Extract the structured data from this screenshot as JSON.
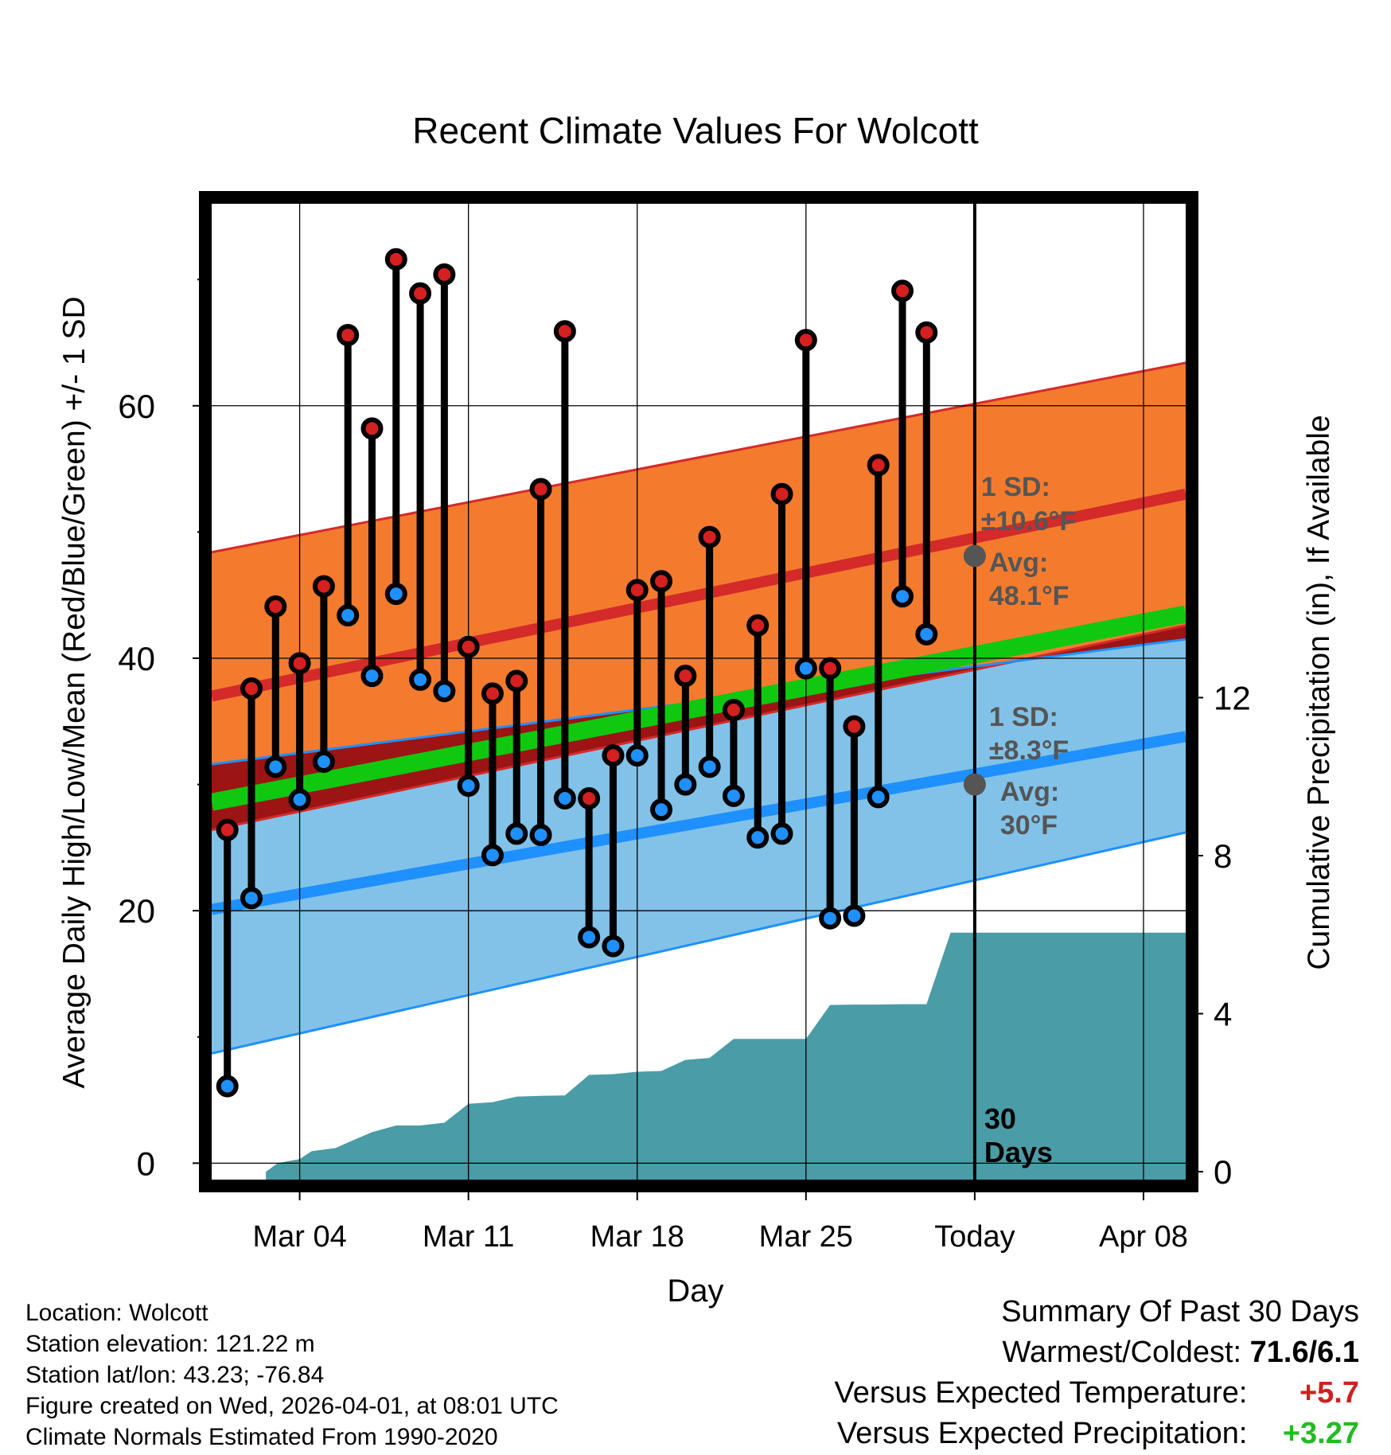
{
  "chart_data": {
    "type": "line",
    "title": "Recent Climate Values For Wolcott",
    "xlabel": "Day",
    "ylabel": "Average Daily High/Low/Mean (Red/Blue/Green) +/- 1 SD",
    "ylabel_right": "Cumulative Precipitation (in), If Available",
    "xlim": [
      0.35,
      40.75
    ],
    "ylim": [
      -1.3,
      76
    ],
    "ylim_right": [
      -0.2,
      24.5
    ],
    "x_ticks": [
      {
        "day": 4,
        "label": "Mar 04"
      },
      {
        "day": 11,
        "label": "Mar 11"
      },
      {
        "day": 18,
        "label": "Mar 18"
      },
      {
        "day": 25,
        "label": "Mar 25"
      },
      {
        "day": 32,
        "label": "Today"
      },
      {
        "day": 39,
        "label": "Apr 08"
      }
    ],
    "y_ticks": [
      0,
      20,
      40,
      60
    ],
    "y_minor_ticks": [
      10,
      30,
      50,
      70
    ],
    "y_right_ticks": [
      0,
      4,
      8,
      12
    ],
    "today_day": 32,
    "window_label": [
      "30",
      "Days"
    ],
    "normals": {
      "x_range": [
        0.35,
        40.75
      ],
      "high_mean": [
        37,
        53
      ],
      "high_upper": [
        48.4,
        63.4
      ],
      "high_lower": [
        26.4,
        42.6
      ],
      "low_mean": [
        20.1,
        33.8
      ],
      "low_upper": [
        31.6,
        41.5
      ],
      "low_lower": [
        8.7,
        26.2
      ],
      "mean": [
        28.6,
        43.5
      ]
    },
    "series": [
      {
        "name": "Daily High",
        "days": [
          1,
          2,
          3,
          4,
          5,
          6,
          7,
          8,
          9,
          10,
          11,
          12,
          13,
          14,
          15,
          16,
          17,
          18,
          19,
          20,
          21,
          22,
          23,
          24,
          25,
          26,
          27,
          28,
          29,
          30,
          31
        ],
        "values": [
          26.4,
          37.6,
          44.1,
          39.6,
          45.7,
          65.6,
          58.2,
          71.6,
          68.9,
          70.4,
          40.9,
          37.2,
          38.2,
          53.4,
          65.9,
          28.9,
          32.3,
          45.4,
          46.1,
          38.6,
          49.6,
          35.9,
          42.6,
          53.0,
          65.2,
          39.2,
          34.6,
          55.3,
          69.1,
          65.8,
          null
        ]
      },
      {
        "name": "Daily Low",
        "days": [
          1,
          2,
          3,
          4,
          5,
          6,
          7,
          8,
          9,
          10,
          11,
          12,
          13,
          14,
          15,
          16,
          17,
          18,
          19,
          20,
          21,
          22,
          23,
          24,
          25,
          26,
          27,
          28,
          29,
          30,
          31
        ],
        "values": [
          6.1,
          21.0,
          31.4,
          28.8,
          31.8,
          43.4,
          38.6,
          45.1,
          38.3,
          37.4,
          29.9,
          24.4,
          26.1,
          26.0,
          28.9,
          17.9,
          17.2,
          32.3,
          28.0,
          30.0,
          31.4,
          29.1,
          25.8,
          26.1,
          39.2,
          19.4,
          19.6,
          29.0,
          44.9,
          41.9,
          null
        ]
      }
    ],
    "precip_cumulative": {
      "name": "Cumulative Precipitation",
      "days": [
        2.6,
        3.1,
        4,
        4.5,
        5.5,
        6,
        7,
        8,
        9,
        10,
        11,
        12,
        13,
        14,
        15,
        16,
        17,
        18,
        19,
        20,
        21,
        22,
        23,
        24,
        25,
        26,
        27,
        28,
        29,
        30,
        31,
        32,
        40.75
      ],
      "values": [
        0,
        0.22,
        0.32,
        0.52,
        0.6,
        0.74,
        1.0,
        1.17,
        1.17,
        1.24,
        1.72,
        1.76,
        1.9,
        1.92,
        1.93,
        2.45,
        2.47,
        2.53,
        2.55,
        2.83,
        2.88,
        3.36,
        3.36,
        3.36,
        3.36,
        4.22,
        4.23,
        4.23,
        4.24,
        4.24,
        6.05,
        6.05,
        6.05
      ]
    },
    "annotations": [
      {
        "label": "1 SD:",
        "value": "±10.6°F"
      },
      {
        "label": "Avg:",
        "value": "48.1°F"
      },
      {
        "label": "1 SD:",
        "value": "±8.3°F"
      },
      {
        "label": "Avg:",
        "value": "30°F"
      }
    ],
    "today_marker_values": {
      "high_avg": 48.1,
      "low_avg": 30
    }
  },
  "info": {
    "location": "Location: Wolcott",
    "elevation": "Station elevation: 121.22 m",
    "latlon": "Station lat/lon: 43.23; -76.84",
    "created": "Figure created on Wed, 2026-04-01, at 08:01 UTC",
    "normals": "Climate Normals Estimated From 1990-2020"
  },
  "summary": {
    "title": "Summary Of Past 30 Days",
    "warm_cold_label": "Warmest/Coldest:",
    "warm_cold_value": "71.6/6.1",
    "temp_label": "Versus Expected Temperature:",
    "temp_value": "+5.7",
    "precip_label": "Versus Expected Precipitation:",
    "precip_value": "+3.27"
  },
  "colors": {
    "high_band": "#f47b2e",
    "high_line": "#d42a2a",
    "low_band": "#82c2e8",
    "low_line": "#1e90ff",
    "mean_line": "#10c810",
    "overlap": "#9c1414",
    "precip": "#4a9ca6",
    "high_dot": "#d42020",
    "low_dot": "#1e90ff",
    "annotation": "#555555"
  }
}
